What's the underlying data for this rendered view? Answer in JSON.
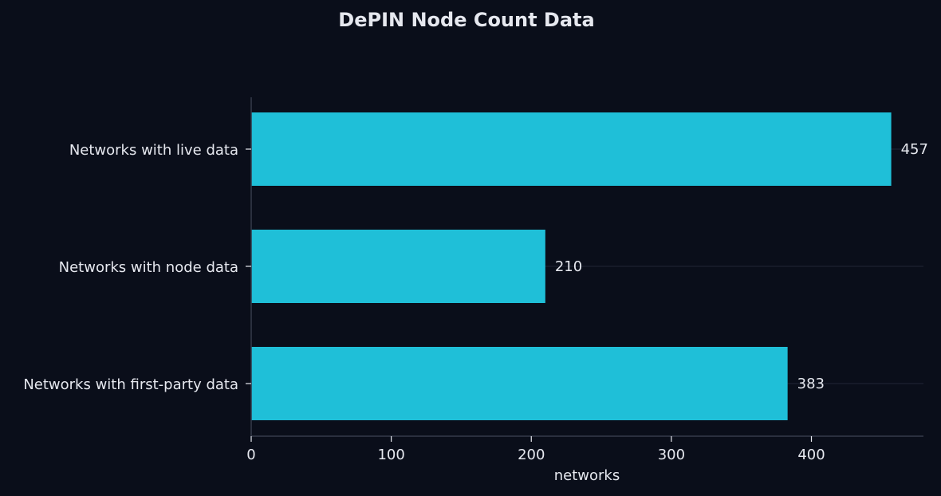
{
  "colors": {
    "background": "#0a0e1a",
    "bar": "#1fbfd8",
    "text": "#e6e8ef",
    "axis": "#343a4a",
    "grid": "#1a1f2c"
  },
  "chart_data": {
    "type": "bar",
    "orientation": "horizontal",
    "title": "DePIN Node Count Data",
    "xlabel": "networks",
    "ylabel": "",
    "categories": [
      "Networks with live data",
      "Networks with node data",
      "Networks with first-party data"
    ],
    "values": [
      457,
      210,
      383
    ],
    "value_labels": [
      "457",
      "210",
      "383"
    ],
    "xlim": [
      0,
      480
    ],
    "xticks": [
      0,
      100,
      200,
      300,
      400
    ],
    "xtick_labels": [
      "0",
      "100",
      "200",
      "300",
      "400"
    ],
    "grid": true
  }
}
